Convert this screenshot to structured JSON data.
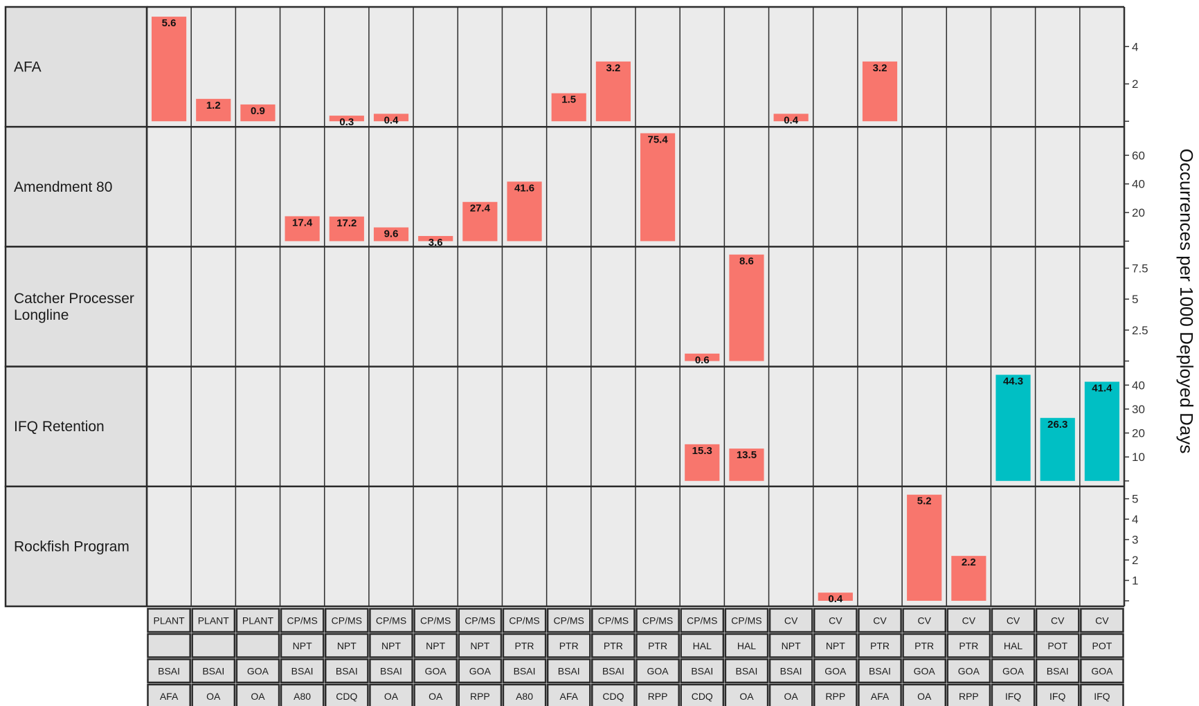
{
  "chart_data": {
    "type": "bar",
    "ylabel": "Occurrences per  1000 Deployed Days",
    "colors": {
      "default": "#f8766d",
      "ifq": "#00bfc4",
      "panel": "#ebebeb",
      "strip": "#e0e0e0",
      "grid": "#2b2b2b"
    },
    "rows": [
      {
        "label": "AFA",
        "ylim": [
          0,
          5.9
        ],
        "ticks": [
          4,
          2
        ]
      },
      {
        "label": "Amendment 80",
        "ylim": [
          0,
          77
        ],
        "ticks": [
          60,
          40,
          20
        ]
      },
      {
        "label": "Catcher Processer\nLongline",
        "ylim": [
          0,
          8.9
        ],
        "ticks": [
          7.5,
          5,
          2.5
        ]
      },
      {
        "label": "IFQ Retention",
        "ylim": [
          0,
          46
        ],
        "ticks": [
          40,
          30,
          20,
          10
        ]
      },
      {
        "label": "Rockfish Program",
        "ylim": [
          0,
          5.4
        ],
        "ticks": [
          5,
          4,
          3,
          2,
          1
        ]
      }
    ],
    "columns": [
      {
        "sector": "PLANT",
        "gear": "",
        "region": "BSAI",
        "program": "AFA"
      },
      {
        "sector": "PLANT",
        "gear": "",
        "region": "BSAI",
        "program": "OA"
      },
      {
        "sector": "PLANT",
        "gear": "",
        "region": "GOA",
        "program": "OA"
      },
      {
        "sector": "CP/MS",
        "gear": "NPT",
        "region": "BSAI",
        "program": "A80"
      },
      {
        "sector": "CP/MS",
        "gear": "NPT",
        "region": "BSAI",
        "program": "CDQ"
      },
      {
        "sector": "CP/MS",
        "gear": "NPT",
        "region": "BSAI",
        "program": "OA"
      },
      {
        "sector": "CP/MS",
        "gear": "NPT",
        "region": "GOA",
        "program": "OA"
      },
      {
        "sector": "CP/MS",
        "gear": "NPT",
        "region": "GOA",
        "program": "RPP"
      },
      {
        "sector": "CP/MS",
        "gear": "PTR",
        "region": "BSAI",
        "program": "A80"
      },
      {
        "sector": "CP/MS",
        "gear": "PTR",
        "region": "BSAI",
        "program": "AFA"
      },
      {
        "sector": "CP/MS",
        "gear": "PTR",
        "region": "BSAI",
        "program": "CDQ"
      },
      {
        "sector": "CP/MS",
        "gear": "PTR",
        "region": "GOA",
        "program": "RPP"
      },
      {
        "sector": "CP/MS",
        "gear": "HAL",
        "region": "BSAI",
        "program": "CDQ"
      },
      {
        "sector": "CP/MS",
        "gear": "HAL",
        "region": "BSAI",
        "program": "OA"
      },
      {
        "sector": "CV",
        "gear": "NPT",
        "region": "BSAI",
        "program": "OA"
      },
      {
        "sector": "CV",
        "gear": "NPT",
        "region": "GOA",
        "program": "RPP"
      },
      {
        "sector": "CV",
        "gear": "PTR",
        "region": "BSAI",
        "program": "AFA"
      },
      {
        "sector": "CV",
        "gear": "PTR",
        "region": "GOA",
        "program": "OA"
      },
      {
        "sector": "CV",
        "gear": "PTR",
        "region": "GOA",
        "program": "RPP"
      },
      {
        "sector": "CV",
        "gear": "HAL",
        "region": "GOA",
        "program": "IFQ"
      },
      {
        "sector": "CV",
        "gear": "POT",
        "region": "BSAI",
        "program": "IFQ"
      },
      {
        "sector": "CV",
        "gear": "POT",
        "region": "GOA",
        "program": "IFQ"
      }
    ],
    "bars": [
      {
        "row": 0,
        "col": 0,
        "value": 5.6,
        "label": "5.6",
        "color": "default"
      },
      {
        "row": 0,
        "col": 1,
        "value": 1.2,
        "label": "1.2",
        "color": "default"
      },
      {
        "row": 0,
        "col": 2,
        "value": 0.9,
        "label": "0.9",
        "color": "default"
      },
      {
        "row": 0,
        "col": 4,
        "value": 0.3,
        "label": "0.3",
        "color": "default"
      },
      {
        "row": 0,
        "col": 5,
        "value": 0.4,
        "label": "0.4",
        "color": "default"
      },
      {
        "row": 0,
        "col": 9,
        "value": 1.5,
        "label": "1.5",
        "color": "default"
      },
      {
        "row": 0,
        "col": 10,
        "value": 3.2,
        "label": "3.2",
        "color": "default"
      },
      {
        "row": 0,
        "col": 14,
        "value": 0.4,
        "label": "0.4",
        "color": "default"
      },
      {
        "row": 0,
        "col": 16,
        "value": 3.2,
        "label": "3.2",
        "color": "default"
      },
      {
        "row": 1,
        "col": 3,
        "value": 17.4,
        "label": "17.4",
        "color": "default"
      },
      {
        "row": 1,
        "col": 4,
        "value": 17.2,
        "label": "17.2",
        "color": "default"
      },
      {
        "row": 1,
        "col": 5,
        "value": 9.6,
        "label": "9.6",
        "color": "default"
      },
      {
        "row": 1,
        "col": 6,
        "value": 3.6,
        "label": "3.6",
        "color": "default"
      },
      {
        "row": 1,
        "col": 7,
        "value": 27.4,
        "label": "27.4",
        "color": "default"
      },
      {
        "row": 1,
        "col": 8,
        "value": 41.6,
        "label": "41.6",
        "color": "default"
      },
      {
        "row": 1,
        "col": 11,
        "value": 75.4,
        "label": "75.4",
        "color": "default"
      },
      {
        "row": 2,
        "col": 12,
        "value": 0.6,
        "label": "0.6",
        "color": "default"
      },
      {
        "row": 2,
        "col": 13,
        "value": 8.6,
        "label": "8.6",
        "color": "default"
      },
      {
        "row": 3,
        "col": 12,
        "value": 15.3,
        "label": "15.3",
        "color": "default"
      },
      {
        "row": 3,
        "col": 13,
        "value": 13.5,
        "label": "13.5",
        "color": "default"
      },
      {
        "row": 3,
        "col": 19,
        "value": 44.3,
        "label": "44.3",
        "color": "ifq"
      },
      {
        "row": 3,
        "col": 20,
        "value": 26.3,
        "label": "26.3",
        "color": "ifq"
      },
      {
        "row": 3,
        "col": 21,
        "value": 41.4,
        "label": "41.4",
        "color": "ifq"
      },
      {
        "row": 4,
        "col": 15,
        "value": 0.4,
        "label": "0.4",
        "color": "default"
      },
      {
        "row": 4,
        "col": 17,
        "value": 5.2,
        "label": "5.2",
        "color": "default"
      },
      {
        "row": 4,
        "col": 18,
        "value": 2.2,
        "label": "2.2",
        "color": "default"
      }
    ]
  }
}
